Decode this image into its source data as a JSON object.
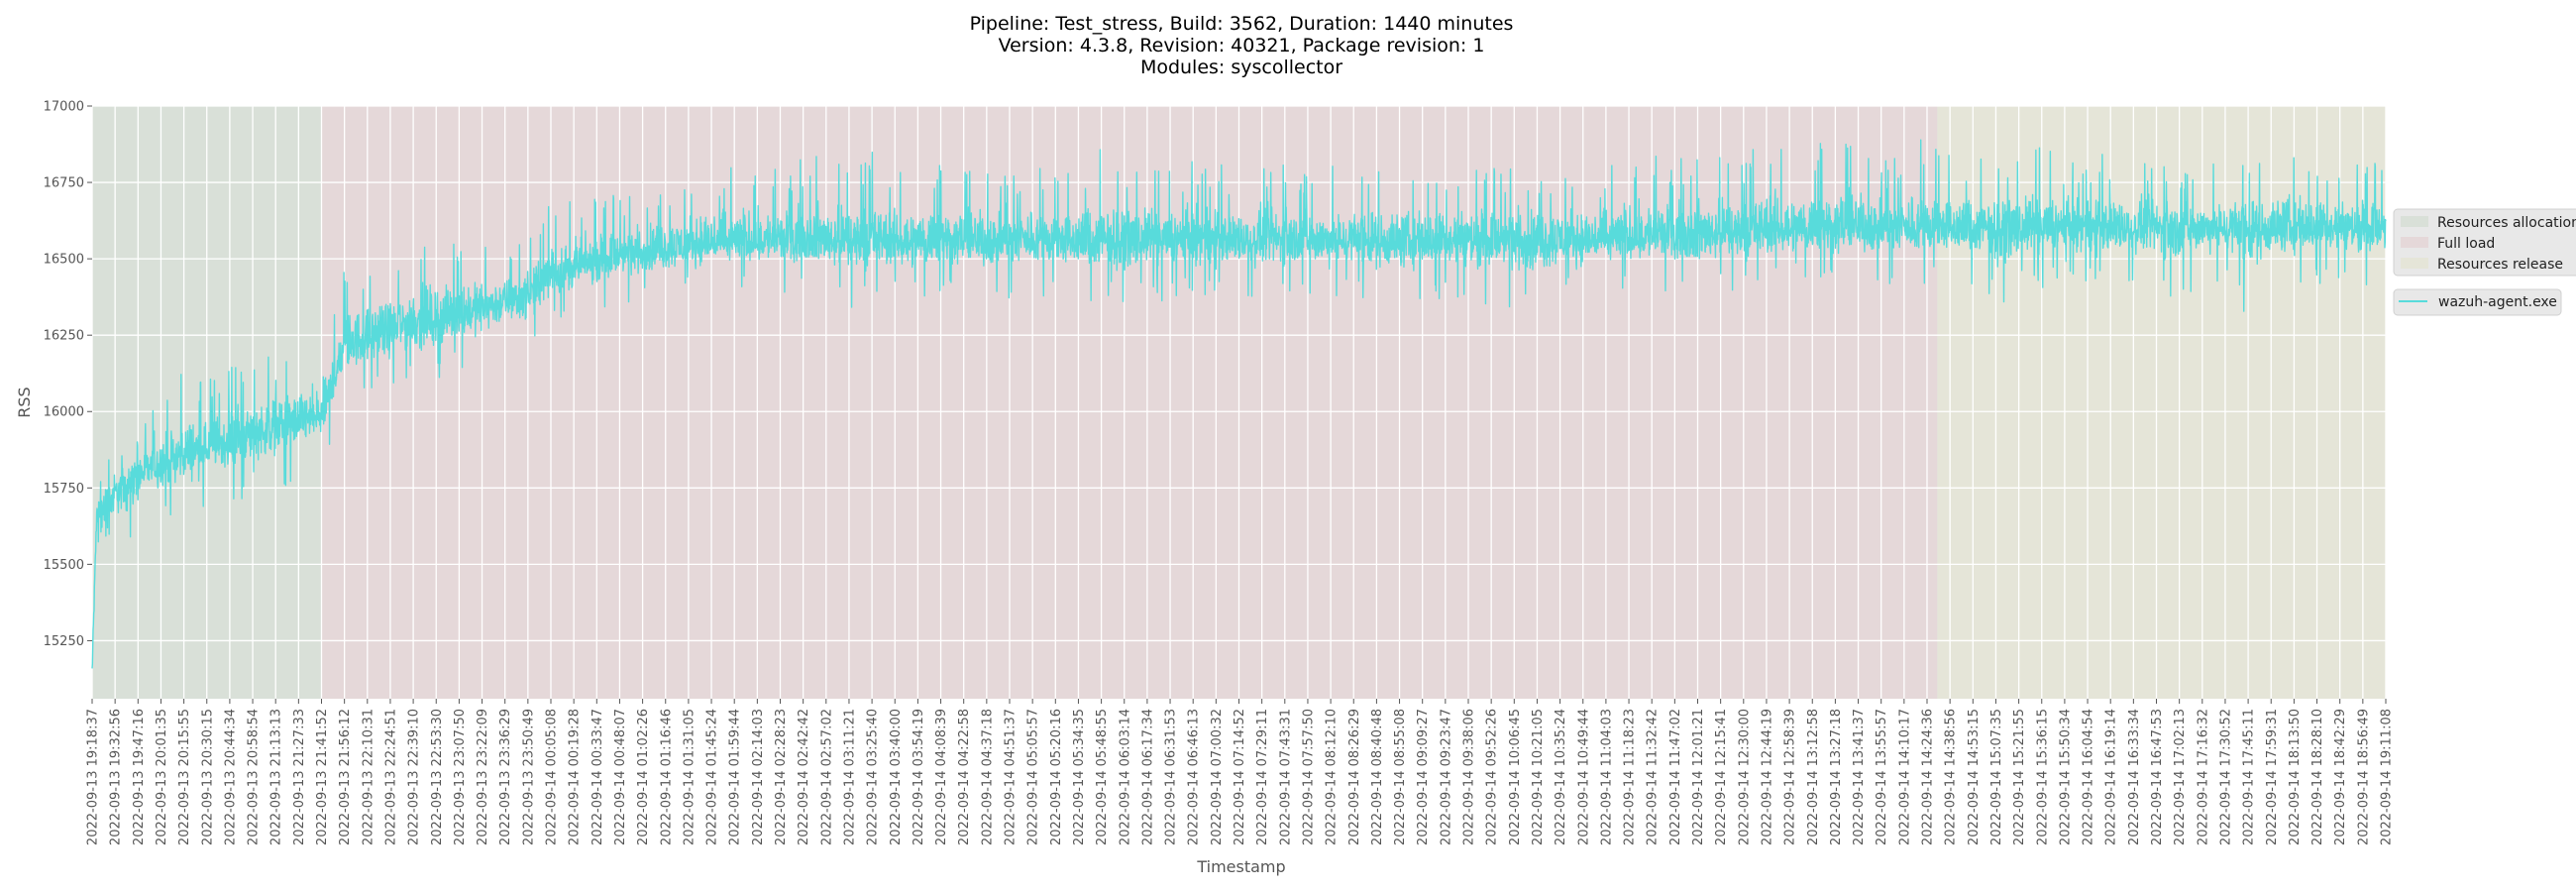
{
  "title_lines": [
    "Pipeline: Test_stress, Build: 3562, Duration: 1440 minutes",
    "Version: 4.3.8, Revision: 40321, Package revision: 1",
    "Modules: syscollector"
  ],
  "colors": {
    "plot_background": "#E5E5E5",
    "grid": "#FFFFFF",
    "series": "#58DBDB",
    "resources_allocation": "#D9E0D8",
    "full_load": "#E5D8D9",
    "resources_release": "#E5E5D8",
    "legend_background": "#E8E8E8"
  },
  "chart_data": {
    "type": "line",
    "title": "Pipeline: Test_stress, Build: 3562, Duration: 1440 minutes\nVersion: 4.3.8, Revision: 40321, Package revision: 1\nModules: syscollector",
    "xlabel": "Timestamp",
    "ylabel": "RSS",
    "ylim": [
      15060,
      17000
    ],
    "y_ticks": [
      15250,
      15500,
      15750,
      16000,
      16250,
      16500,
      16750,
      17000
    ],
    "grid": true,
    "legend_placement": "outside-right",
    "x_ticks": [
      "2022-09-13 19:18:37",
      "2022-09-13 19:32:56",
      "2022-09-13 19:47:16",
      "2022-09-13 20:01:35",
      "2022-09-13 20:15:55",
      "2022-09-13 20:30:15",
      "2022-09-13 20:44:34",
      "2022-09-13 20:58:54",
      "2022-09-13 21:13:13",
      "2022-09-13 21:27:33",
      "2022-09-13 21:41:52",
      "2022-09-13 21:56:12",
      "2022-09-13 22:10:31",
      "2022-09-13 22:24:51",
      "2022-09-13 22:39:10",
      "2022-09-13 22:53:30",
      "2022-09-13 23:07:50",
      "2022-09-13 23:22:09",
      "2022-09-13 23:36:29",
      "2022-09-13 23:50:49",
      "2022-09-14 00:05:08",
      "2022-09-14 00:19:28",
      "2022-09-14 00:33:47",
      "2022-09-14 00:48:07",
      "2022-09-14 01:02:26",
      "2022-09-14 01:16:46",
      "2022-09-14 01:31:05",
      "2022-09-14 01:45:24",
      "2022-09-14 01:59:44",
      "2022-09-14 02:14:03",
      "2022-09-14 02:28:23",
      "2022-09-14 02:42:42",
      "2022-09-14 02:57:02",
      "2022-09-14 03:11:21",
      "2022-09-14 03:25:40",
      "2022-09-14 03:40:00",
      "2022-09-14 03:54:19",
      "2022-09-14 04:08:39",
      "2022-09-14 04:22:58",
      "2022-09-14 04:37:18",
      "2022-09-14 04:51:37",
      "2022-09-14 05:05:57",
      "2022-09-14 05:20:16",
      "2022-09-14 05:34:35",
      "2022-09-14 05:48:55",
      "2022-09-14 06:03:14",
      "2022-09-14 06:17:34",
      "2022-09-14 06:31:53",
      "2022-09-14 06:46:13",
      "2022-09-14 07:00:32",
      "2022-09-14 07:14:52",
      "2022-09-14 07:29:11",
      "2022-09-14 07:43:31",
      "2022-09-14 07:57:50",
      "2022-09-14 08:12:10",
      "2022-09-14 08:26:29",
      "2022-09-14 08:40:48",
      "2022-09-14 08:55:08",
      "2022-09-14 09:09:27",
      "2022-09-14 09:23:47",
      "2022-09-14 09:38:06",
      "2022-09-14 09:52:26",
      "2022-09-14 10:06:45",
      "2022-09-14 10:21:05",
      "2022-09-14 10:35:24",
      "2022-09-14 10:49:44",
      "2022-09-14 11:04:03",
      "2022-09-14 11:18:23",
      "2022-09-14 11:32:42",
      "2022-09-14 11:47:02",
      "2022-09-14 12:01:21",
      "2022-09-14 12:15:41",
      "2022-09-14 12:30:00",
      "2022-09-14 12:44:19",
      "2022-09-14 12:58:39",
      "2022-09-14 13:12:58",
      "2022-09-14 13:27:18",
      "2022-09-14 13:41:37",
      "2022-09-14 13:55:57",
      "2022-09-14 14:10:17",
      "2022-09-14 14:24:36",
      "2022-09-14 14:38:56",
      "2022-09-14 14:53:15",
      "2022-09-14 15:07:35",
      "2022-09-14 15:21:55",
      "2022-09-14 15:36:15",
      "2022-09-14 15:50:34",
      "2022-09-14 16:04:54",
      "2022-09-14 16:19:14",
      "2022-09-14 16:33:34",
      "2022-09-14 16:47:53",
      "2022-09-14 17:02:13",
      "2022-09-14 17:16:32",
      "2022-09-14 17:30:52",
      "2022-09-14 17:45:11",
      "2022-09-14 17:59:31",
      "2022-09-14 18:13:50",
      "2022-09-14 18:28:10",
      "2022-09-14 18:42:29",
      "2022-09-14 18:56:49",
      "2022-09-14 19:11:08"
    ],
    "phases": [
      {
        "name": "Resources allocation",
        "start": "2022-09-13 19:18:37",
        "end": "2022-09-13 21:41:52"
      },
      {
        "name": "Full load",
        "start": "2022-09-13 21:41:52",
        "end": "2022-09-14 14:31:00"
      },
      {
        "name": "Resources release",
        "start": "2022-09-14 14:31:00",
        "end": "2022-09-14 19:11:08"
      }
    ],
    "series": [
      {
        "name": "wazuh-agent.exe",
        "sampled_at": "x_ticks",
        "mean": [
          15650,
          15730,
          15800,
          15830,
          15860,
          15880,
          15900,
          15930,
          15950,
          15970,
          15980,
          16220,
          16250,
          16270,
          16290,
          16300,
          16320,
          16340,
          16360,
          16380,
          16450,
          16470,
          16490,
          16510,
          16520,
          16530,
          16540,
          16550,
          16555,
          16560,
          16560,
          16565,
          16560,
          16560,
          16565,
          16560,
          16560,
          16565,
          16560,
          16555,
          16560,
          16565,
          16560,
          16560,
          16555,
          16560,
          16565,
          16560,
          16560,
          16560,
          16560,
          16565,
          16560,
          16560,
          16560,
          16565,
          16560,
          16555,
          16560,
          16560,
          16565,
          16560,
          16560,
          16555,
          16560,
          16560,
          16565,
          16570,
          16575,
          16580,
          16585,
          16585,
          16590,
          16595,
          16600,
          16600,
          16600,
          16605,
          16600,
          16600,
          16600,
          16600,
          16600,
          16600,
          16600,
          16595,
          16600,
          16600,
          16600,
          16600,
          16600,
          16600,
          16600,
          16605,
          16600,
          16600,
          16600,
          16605,
          16600,
          16600,
          16600
        ],
        "min": [
          15150,
          15550,
          15550,
          15650,
          15660,
          15680,
          15700,
          15720,
          15740,
          15780,
          15810,
          16000,
          16020,
          16050,
          16080,
          16100,
          16120,
          16150,
          16180,
          16200,
          16260,
          16300,
          16330,
          16350,
          16360,
          16380,
          16390,
          16400,
          16400,
          16400,
          16380,
          16390,
          16380,
          16330,
          16350,
          16360,
          16340,
          16360,
          16380,
          16370,
          16360,
          16370,
          16350,
          16360,
          16350,
          16360,
          16370,
          16350,
          16360,
          16370,
          16370,
          16360,
          16380,
          16370,
          16360,
          16380,
          16350,
          16340,
          16360,
          16370,
          16300,
          16360,
          16330,
          16310,
          16380,
          16370,
          16380,
          16400,
          16380,
          16390,
          16330,
          16400,
          16380,
          16400,
          16420,
          16410,
          16400,
          16420,
          16400,
          16420,
          16400,
          16420,
          16410,
          16330,
          16410,
          16400,
          16420,
          16410,
          16400,
          16420,
          16410,
          16320,
          16420,
          16410,
          16300,
          16400,
          16410,
          16420,
          16400,
          16410,
          16400
        ],
        "max": [
          15750,
          15910,
          15920,
          16050,
          16140,
          16130,
          16150,
          16160,
          16190,
          16190,
          16240,
          16480,
          16470,
          16500,
          16590,
          16570,
          16580,
          16550,
          16550,
          16560,
          16690,
          16700,
          16700,
          16720,
          16740,
          16760,
          16780,
          16860,
          16820,
          16810,
          16800,
          16830,
          16850,
          16810,
          16860,
          16800,
          16810,
          16820,
          16800,
          16810,
          16800,
          16810,
          16790,
          16810,
          16860,
          16800,
          16810,
          16800,
          16830,
          16810,
          16800,
          16820,
          16830,
          16800,
          16810,
          16790,
          16810,
          16800,
          16810,
          16800,
          16810,
          16800,
          16830,
          16800,
          16820,
          16810,
          16830,
          16840,
          16850,
          16830,
          16830,
          16850,
          16830,
          16920,
          16860,
          16880,
          16920,
          16870,
          16850,
          16870,
          16910,
          16860,
          16830,
          16820,
          16840,
          16890,
          16830,
          16810,
          16860,
          16840,
          16830,
          16800,
          16810,
          16820,
          16840,
          16830,
          16890,
          16820,
          16830,
          16820,
          16820
        ]
      }
    ]
  },
  "legend": {
    "phases": [
      "Resources allocation",
      "Full load",
      "Resources release"
    ],
    "series": [
      "wazuh-agent.exe"
    ]
  }
}
